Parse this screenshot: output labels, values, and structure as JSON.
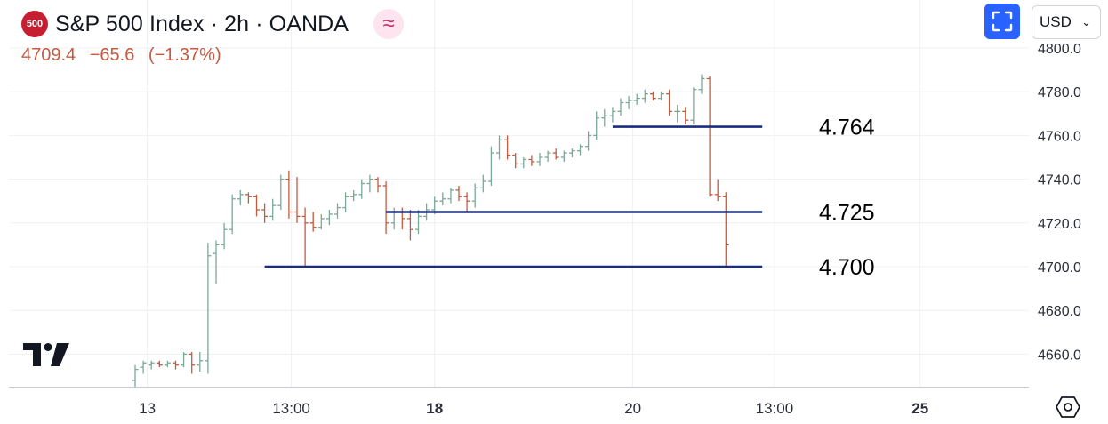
{
  "header": {
    "symbol_badge": "500",
    "title": "S&P 500 Index · 2h · OANDA",
    "provider_icon": "approx-wave-icon"
  },
  "quote": {
    "price": "4709.4",
    "change": "−65.6",
    "change_pct": "(−1.37%)"
  },
  "toolbar": {
    "currency": "USD",
    "fullscreen_icon": "fullscreen-icon",
    "settings_icon": "hexagon-settings-icon"
  },
  "colors": {
    "up": "#7aaa96",
    "down": "#c65a3f",
    "level_line": "#1a2d80",
    "grid": "#eef0f3",
    "text": "#131722"
  },
  "chart_data": {
    "type": "ohlc",
    "y_axis": {
      "ticks": [
        4800,
        4780,
        4760,
        4740,
        4720,
        4700,
        4680,
        4660
      ],
      "tick_labels": [
        "4800.0",
        "4780.0",
        "4760.0",
        "4740.0",
        "4720.0",
        "4700.0",
        "4680.0",
        "4660.0"
      ],
      "range": [
        4646,
        4820
      ]
    },
    "x_axis": {
      "labels": [
        {
          "bar": 1.5,
          "text": "13",
          "bold": false
        },
        {
          "bar": 19.3,
          "text": "13:00",
          "bold": false
        },
        {
          "bar": 37,
          "text": "18",
          "bold": true
        },
        {
          "bar": 61.5,
          "text": "20",
          "bold": false
        },
        {
          "bar": 79,
          "text": "13:00",
          "bold": false
        },
        {
          "bar": 97,
          "text": "25",
          "bold": true
        }
      ]
    },
    "grid": true,
    "bars": [
      [
        4648,
        4655,
        4645,
        4653
      ],
      [
        4654,
        4657,
        4651,
        4656
      ],
      [
        4655,
        4657,
        4653,
        4656
      ],
      [
        4656,
        4657,
        4654,
        4655
      ],
      [
        4655,
        4657,
        4654,
        4656
      ],
      [
        4656,
        4657,
        4653,
        4655
      ],
      [
        4655,
        4661,
        4654,
        4660
      ],
      [
        4660,
        4661,
        4651,
        4655
      ],
      [
        4655,
        4661,
        4652,
        4657
      ],
      [
        4657,
        4711,
        4651,
        4705
      ],
      [
        4706,
        4712,
        4692,
        4710
      ],
      [
        4710,
        4720,
        4708,
        4717
      ],
      [
        4717,
        4733,
        4715,
        4731
      ],
      [
        4731,
        4735,
        4728,
        4733
      ],
      [
        4733,
        4734,
        4729,
        4732
      ],
      [
        4732,
        4733,
        4723,
        4726
      ],
      [
        4726,
        4729,
        4720,
        4723
      ],
      [
        4723,
        4731,
        4721,
        4728
      ],
      [
        4728,
        4742,
        4726,
        4740
      ],
      [
        4740,
        4744,
        4722,
        4725
      ],
      [
        4725,
        4741,
        4720,
        4723
      ],
      [
        4723,
        4727,
        4700,
        4720
      ],
      [
        4720,
        4725,
        4716,
        4718
      ],
      [
        4718,
        4724,
        4717,
        4722
      ],
      [
        4722,
        4726,
        4719,
        4724
      ],
      [
        4724,
        4729,
        4722,
        4727
      ],
      [
        4727,
        4734,
        4725,
        4732
      ],
      [
        4732,
        4735,
        4730,
        4733
      ],
      [
        4733,
        4740,
        4731,
        4738
      ],
      [
        4738,
        4742,
        4734,
        4740
      ],
      [
        4740,
        4741,
        4734,
        4737
      ],
      [
        4737,
        4739,
        4715,
        4720
      ],
      [
        4720,
        4727,
        4717,
        4725
      ],
      [
        4725,
        4727,
        4717,
        4722
      ],
      [
        4722,
        4726,
        4712,
        4717
      ],
      [
        4717,
        4726,
        4715,
        4723
      ],
      [
        4723,
        4729,
        4721,
        4726
      ],
      [
        4726,
        4732,
        4724,
        4730
      ],
      [
        4730,
        4734,
        4728,
        4731
      ],
      [
        4731,
        4736,
        4729,
        4735
      ],
      [
        4735,
        4737,
        4730,
        4732
      ],
      [
        4732,
        4734,
        4725,
        4730
      ],
      [
        4730,
        4738,
        4727,
        4736
      ],
      [
        4736,
        4742,
        4734,
        4739
      ],
      [
        4739,
        4755,
        4737,
        4752
      ],
      [
        4752,
        4760,
        4749,
        4758
      ],
      [
        4758,
        4760,
        4749,
        4751
      ],
      [
        4751,
        4752,
        4745,
        4747
      ],
      [
        4747,
        4750,
        4745,
        4749
      ],
      [
        4749,
        4751,
        4746,
        4748
      ],
      [
        4748,
        4752,
        4746,
        4750
      ],
      [
        4750,
        4753,
        4748,
        4752
      ],
      [
        4752,
        4754,
        4749,
        4750
      ],
      [
        4750,
        4753,
        4748,
        4752
      ],
      [
        4752,
        4754,
        4750,
        4753
      ],
      [
        4753,
        4756,
        4751,
        4755
      ],
      [
        4755,
        4762,
        4753,
        4760
      ],
      [
        4760,
        4771,
        4758,
        4768
      ],
      [
        4768,
        4772,
        4764,
        4769
      ],
      [
        4769,
        4773,
        4766,
        4771
      ],
      [
        4771,
        4777,
        4769,
        4775
      ],
      [
        4775,
        4778,
        4772,
        4776
      ],
      [
        4776,
        4779,
        4774,
        4777
      ],
      [
        4777,
        4781,
        4775,
        4779
      ],
      [
        4779,
        4780,
        4776,
        4777
      ],
      [
        4777,
        4780,
        4776,
        4779
      ],
      [
        4779,
        4781,
        4769,
        4771
      ],
      [
        4771,
        4774,
        4766,
        4771
      ],
      [
        4771,
        4773,
        4765,
        4767
      ],
      [
        4767,
        4782,
        4765,
        4781
      ],
      [
        4781,
        4788,
        4779,
        4786
      ],
      [
        4786,
        4787,
        4732,
        4733
      ],
      [
        4733,
        4740,
        4730,
        4732
      ],
      [
        4732,
        4734,
        4700,
        4710
      ]
    ],
    "levels": [
      {
        "value": 4764,
        "label": "4.764",
        "from_bar": 59,
        "to_bar": 77.5
      },
      {
        "value": 4725,
        "label": "4.725",
        "from_bar": 31,
        "to_bar": 77.5
      },
      {
        "value": 4700,
        "label": "4.700",
        "from_bar": 16,
        "to_bar": 77.5
      }
    ]
  }
}
